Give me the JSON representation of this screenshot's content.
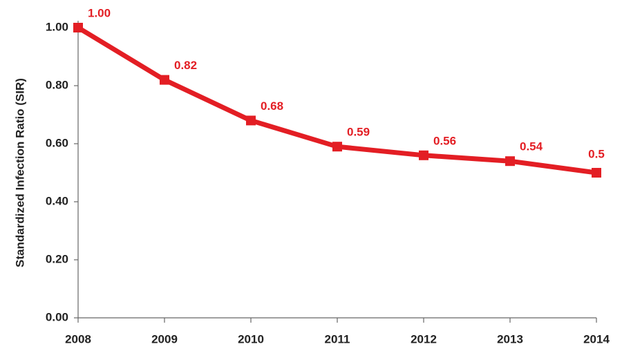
{
  "chart_data": {
    "type": "line",
    "y_label": "Standardized Infection Ratio (SIR)",
    "x": [
      2008,
      2009,
      2010,
      2011,
      2012,
      2013,
      2014
    ],
    "series": [
      {
        "name": "SIR",
        "color": "#e31e24",
        "values": [
          1.0,
          0.82,
          0.68,
          0.59,
          0.56,
          0.54,
          0.5
        ],
        "value_labels": [
          "1.00",
          "0.82",
          "0.68",
          "0.59",
          "0.56",
          "0.54",
          "0.5"
        ]
      }
    ],
    "xlim": [
      2008,
      2014
    ],
    "xticks": [
      2008,
      2009,
      2010,
      2011,
      2012,
      2013,
      2014
    ],
    "ylim": [
      0,
      1
    ],
    "yticks": [
      {
        "value": 0,
        "label": "0.00"
      },
      {
        "value": 0.2,
        "label": "0.20"
      },
      {
        "value": 0.4,
        "label": "0.40"
      },
      {
        "value": 0.6,
        "label": "0.60"
      },
      {
        "value": 0.8,
        "label": "0.80"
      },
      {
        "value": 1,
        "label": "1.00"
      }
    ],
    "grid": false
  }
}
